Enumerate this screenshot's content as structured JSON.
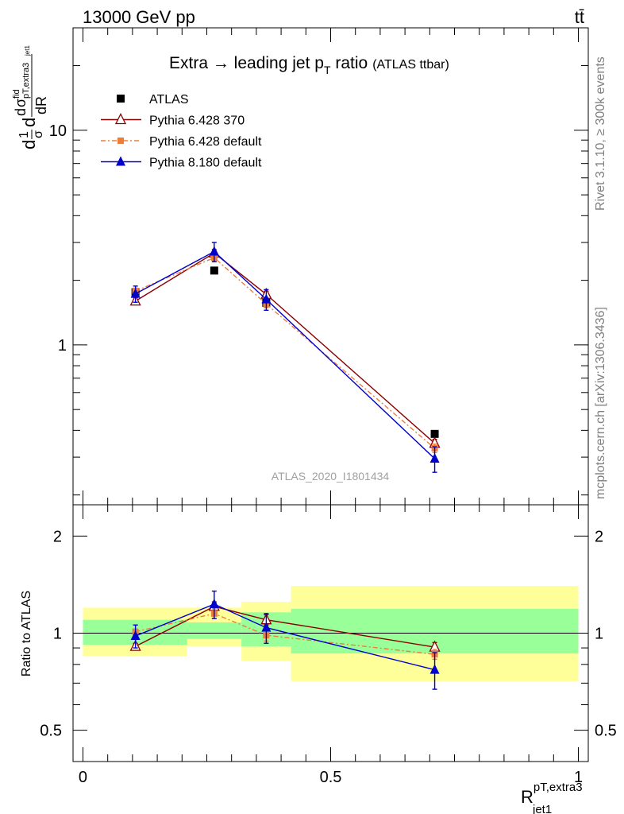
{
  "header": {
    "energy_label": "13000 GeV pp",
    "process_label": "tt̄"
  },
  "side": {
    "rivet_label": "Rivet 3.1.10, ≥ 300k events",
    "mcplots_label": "mcplots.cern.ch [arXiv:1306.3436]"
  },
  "chart_data": [
    {
      "type": "scatter",
      "title": "Extra → leading jet p",
      "title_sub": "T",
      "title_rest": " ratio",
      "title_note": "(ATLAS ttbar)",
      "analysis_tag": "ATLAS_2020_I1801434",
      "ylabel_main": "d",
      "ylabel_parts": [
        "1",
        "σ",
        "d",
        "σ",
        "fid",
        "pT,extra3",
        "jet1",
        "dR"
      ],
      "yscale": "log",
      "ylim": [
        0.18,
        30
      ],
      "xlim": [
        -0.02,
        1.02
      ],
      "y_ticks": [
        1,
        10
      ],
      "y_tick_labels": [
        "1",
        "10"
      ],
      "legend_position": "top-left",
      "x": [
        0.106,
        0.265,
        0.37,
        0.71
      ],
      "series": [
        {
          "name": "ATLAS",
          "color": "#000000",
          "marker": "square",
          "values": [
            1.76,
            2.22,
            1.57,
            0.385
          ]
        },
        {
          "name": "Pythia 6.428 370",
          "color": "#8b0000",
          "marker": "triangle-open",
          "values": [
            1.6,
            2.68,
            1.72,
            0.348
          ],
          "errors": [
            0.06,
            0.1,
            0.06,
            0.015
          ]
        },
        {
          "name": "Pythia 6.428 default",
          "color": "#ee7d3b",
          "marker": "square-small",
          "dash": true,
          "values": [
            1.78,
            2.55,
            1.55,
            0.33
          ],
          "errors": [
            0.06,
            0.1,
            0.06,
            0.015
          ]
        },
        {
          "name": "Pythia 8.180 default",
          "color": "#0000cc",
          "marker": "triangle",
          "values": [
            1.73,
            2.72,
            1.63,
            0.295
          ],
          "errors": [
            0.15,
            0.28,
            0.18,
            0.04
          ]
        }
      ]
    },
    {
      "type": "scatter",
      "ylabel": "Ratio to ATLAS",
      "yscale": "log",
      "ylim": [
        0.4,
        2.5
      ],
      "xlim": [
        -0.02,
        1.02
      ],
      "xlabel_main": "R",
      "xlabel_sup": "pT,extra3",
      "xlabel_sub": "jet1",
      "x_ticks": [
        0,
        0.5,
        1
      ],
      "x_tick_labels": [
        "0",
        "0.5",
        "1"
      ],
      "y_ticks": [
        0.5,
        1,
        2
      ],
      "y_tick_labels": [
        "0.5",
        "1",
        "2"
      ],
      "bands": [
        {
          "x0": 0.0,
          "x1": 0.21,
          "yellow": [
            0.85,
            1.2
          ],
          "green": [
            0.92,
            1.1
          ]
        },
        {
          "x0": 0.21,
          "x1": 0.32,
          "yellow": [
            0.91,
            1.2
          ],
          "green": [
            0.96,
            1.08
          ]
        },
        {
          "x0": 0.32,
          "x1": 0.42,
          "yellow": [
            0.82,
            1.25
          ],
          "green": [
            0.91,
            1.16
          ]
        },
        {
          "x0": 0.42,
          "x1": 1.0,
          "yellow": [
            0.71,
            1.4
          ],
          "green": [
            0.865,
            1.19
          ]
        }
      ],
      "x": [
        0.106,
        0.265,
        0.37,
        0.71
      ],
      "series": [
        {
          "name": "Pythia 6.428 370",
          "color": "#8b0000",
          "marker": "triangle-open",
          "values": [
            0.91,
            1.21,
            1.1,
            0.905
          ],
          "errors": [
            0.02,
            0.04,
            0.04,
            0.03
          ]
        },
        {
          "name": "Pythia 6.428 default",
          "color": "#ee7d3b",
          "marker": "square-small",
          "dash": true,
          "values": [
            1.01,
            1.15,
            0.985,
            0.86
          ],
          "errors": [
            0.02,
            0.04,
            0.04,
            0.03
          ]
        },
        {
          "name": "Pythia 8.180 default",
          "color": "#0000cc",
          "marker": "triangle",
          "values": [
            0.98,
            1.23,
            1.04,
            0.77
          ],
          "errors": [
            0.08,
            0.12,
            0.11,
            0.1
          ]
        }
      ]
    }
  ]
}
